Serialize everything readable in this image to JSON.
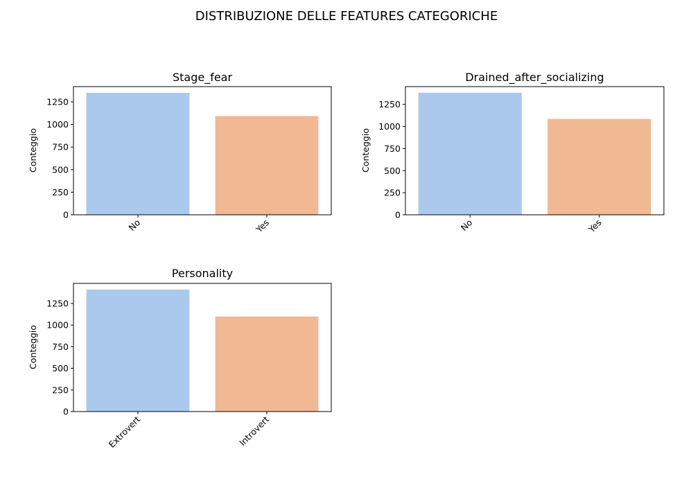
{
  "figure_title": "DISTRIBUZIONE DELLE FEATURES CATEGORICHE",
  "colors": {
    "bar_1": "#abc9ec",
    "bar_2": "#f0b893",
    "axis": "#000000"
  },
  "chart_data": [
    {
      "type": "bar",
      "title": "Stage_fear",
      "xlabel": "",
      "ylabel": "Conteggio",
      "categories": [
        "No",
        "Yes"
      ],
      "values": [
        1350,
        1093
      ],
      "ylim": [
        0,
        1419
      ],
      "yticks": [
        "0",
        "250",
        "500",
        "750",
        "1000",
        "1250"
      ],
      "xtick_rotation_deg": 45,
      "grid": false
    },
    {
      "type": "bar",
      "title": "Drained_after_socializing",
      "xlabel": "",
      "ylabel": "Conteggio",
      "categories": [
        "No",
        "Yes"
      ],
      "values": [
        1382,
        1085
      ],
      "ylim": [
        0,
        1451
      ],
      "yticks": [
        "0",
        "250",
        "500",
        "750",
        "1000",
        "1250"
      ],
      "xtick_rotation_deg": 45,
      "grid": false
    },
    {
      "type": "bar",
      "title": "Personality",
      "xlabel": "",
      "ylabel": "Conteggio",
      "categories": [
        "Extrovert",
        "Introvert"
      ],
      "values": [
        1411,
        1099
      ],
      "ylim": [
        0,
        1482
      ],
      "yticks": [
        "0",
        "250",
        "500",
        "750",
        "1000",
        "1250"
      ],
      "xtick_rotation_deg": 45,
      "grid": false
    }
  ]
}
